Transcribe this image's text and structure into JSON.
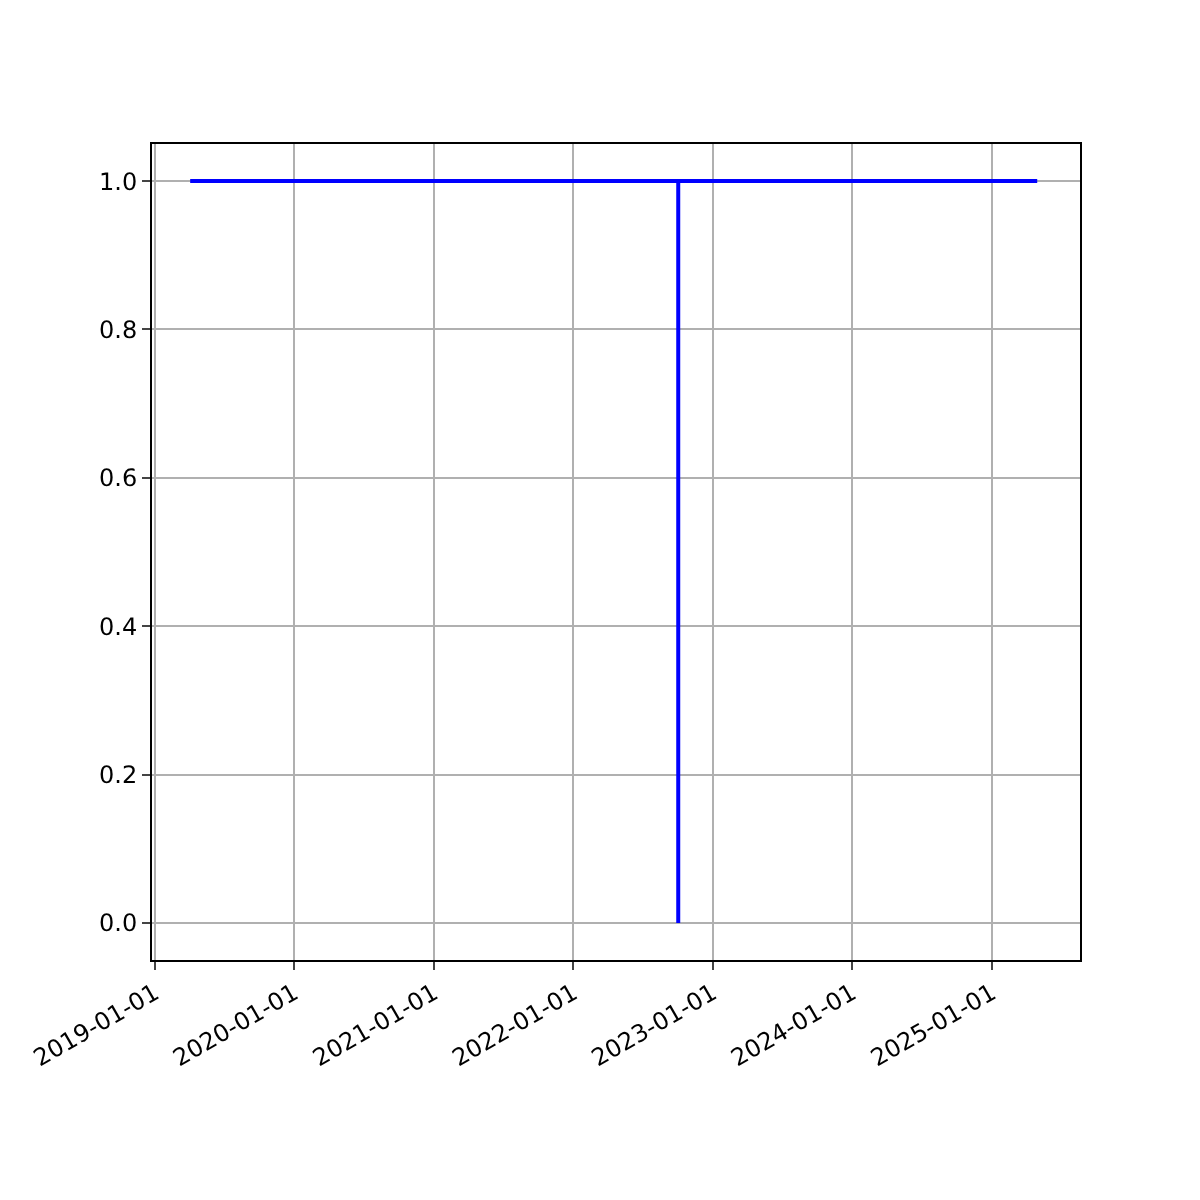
{
  "chart_data": {
    "type": "line",
    "x": [
      "2019-04-04",
      "2022-10-03",
      "2022-10-03",
      "2022-10-03",
      "2025-04-30"
    ],
    "series": [
      {
        "color": "#0000ff",
        "values": [
          1,
          1,
          0,
          1,
          1
        ]
      }
    ],
    "xlim": [
      "2018-12-25",
      "2025-08-20"
    ],
    "xticks": [
      {
        "value": "2019-01-01",
        "label": "2019-01-01"
      },
      {
        "value": "2020-01-01",
        "label": "2020-01-01"
      },
      {
        "value": "2021-01-01",
        "label": "2021-01-01"
      },
      {
        "value": "2022-01-01",
        "label": "2022-01-01"
      },
      {
        "value": "2023-01-01",
        "label": "2023-01-01"
      },
      {
        "value": "2024-01-01",
        "label": "2024-01-01"
      },
      {
        "value": "2025-01-01",
        "label": "2025-01-01"
      }
    ],
    "ylim": [
      -0.05,
      1.05
    ],
    "yticks": [
      {
        "value": 0,
        "label": "0.0"
      },
      {
        "value": 0.2,
        "label": "0.2"
      },
      {
        "value": 0.4,
        "label": "0.4"
      },
      {
        "value": 0.6,
        "label": "0.6"
      },
      {
        "value": 0.8,
        "label": "0.8"
      },
      {
        "value": 1,
        "label": "1.0"
      }
    ],
    "grid": true,
    "marker": "none",
    "line_style": "solid"
  }
}
